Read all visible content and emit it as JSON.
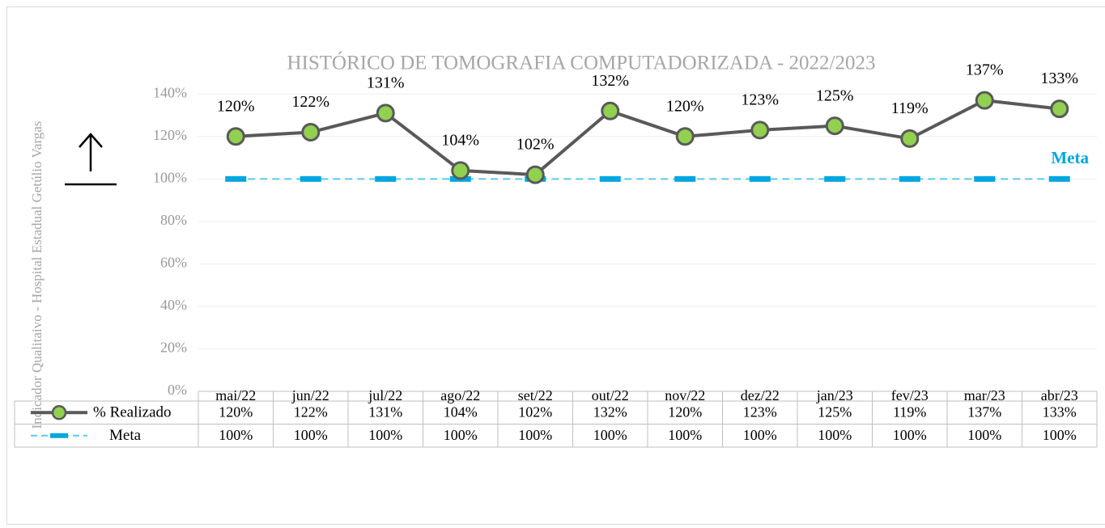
{
  "chart_data": {
    "type": "line",
    "title": "HISTÓRICO DE TOMOGRAFIA COMPUTADORIZADA  - 2022/2023",
    "y_label": "Indicador Qualitaivo - Hospital Estadual Getúlio Vargas",
    "annotation": "Meta",
    "categories": [
      "mai/22",
      "jun/22",
      "jul/22",
      "ago/22",
      "set/22",
      "out/22",
      "nov/22",
      "dez/22",
      "jan/23",
      "fev/23",
      "mar/23",
      "abr/23"
    ],
    "series": [
      {
        "name": "% Realizado",
        "color": "#92d050",
        "line_color": "#595959",
        "values": [
          120,
          122,
          131,
          104,
          102,
          132,
          120,
          123,
          125,
          119,
          137,
          133
        ],
        "value_labels": [
          "120%",
          "122%",
          "131%",
          "104%",
          "102%",
          "132%",
          "120%",
          "123%",
          "125%",
          "119%",
          "137%",
          "133%"
        ]
      },
      {
        "name": "Meta",
        "color": "#00a6e0",
        "line_color": "#5bc8f0",
        "values": [
          100,
          100,
          100,
          100,
          100,
          100,
          100,
          100,
          100,
          100,
          100,
          100
        ],
        "value_labels": [
          "100%",
          "100%",
          "100%",
          "100%",
          "100%",
          "100%",
          "100%",
          "100%",
          "100%",
          "100%",
          "100%",
          "100%"
        ]
      }
    ],
    "ylim": [
      0,
      150
    ],
    "yticks": [
      {
        "value": 0,
        "label": "0%"
      },
      {
        "value": 20,
        "label": "20%"
      },
      {
        "value": 40,
        "label": "40%"
      },
      {
        "value": 60,
        "label": "60%"
      },
      {
        "value": 80,
        "label": "80%"
      },
      {
        "value": 100,
        "label": "100%"
      },
      {
        "value": 120,
        "label": "120%"
      },
      {
        "value": 140,
        "label": "140%"
      }
    ],
    "grid": true
  }
}
